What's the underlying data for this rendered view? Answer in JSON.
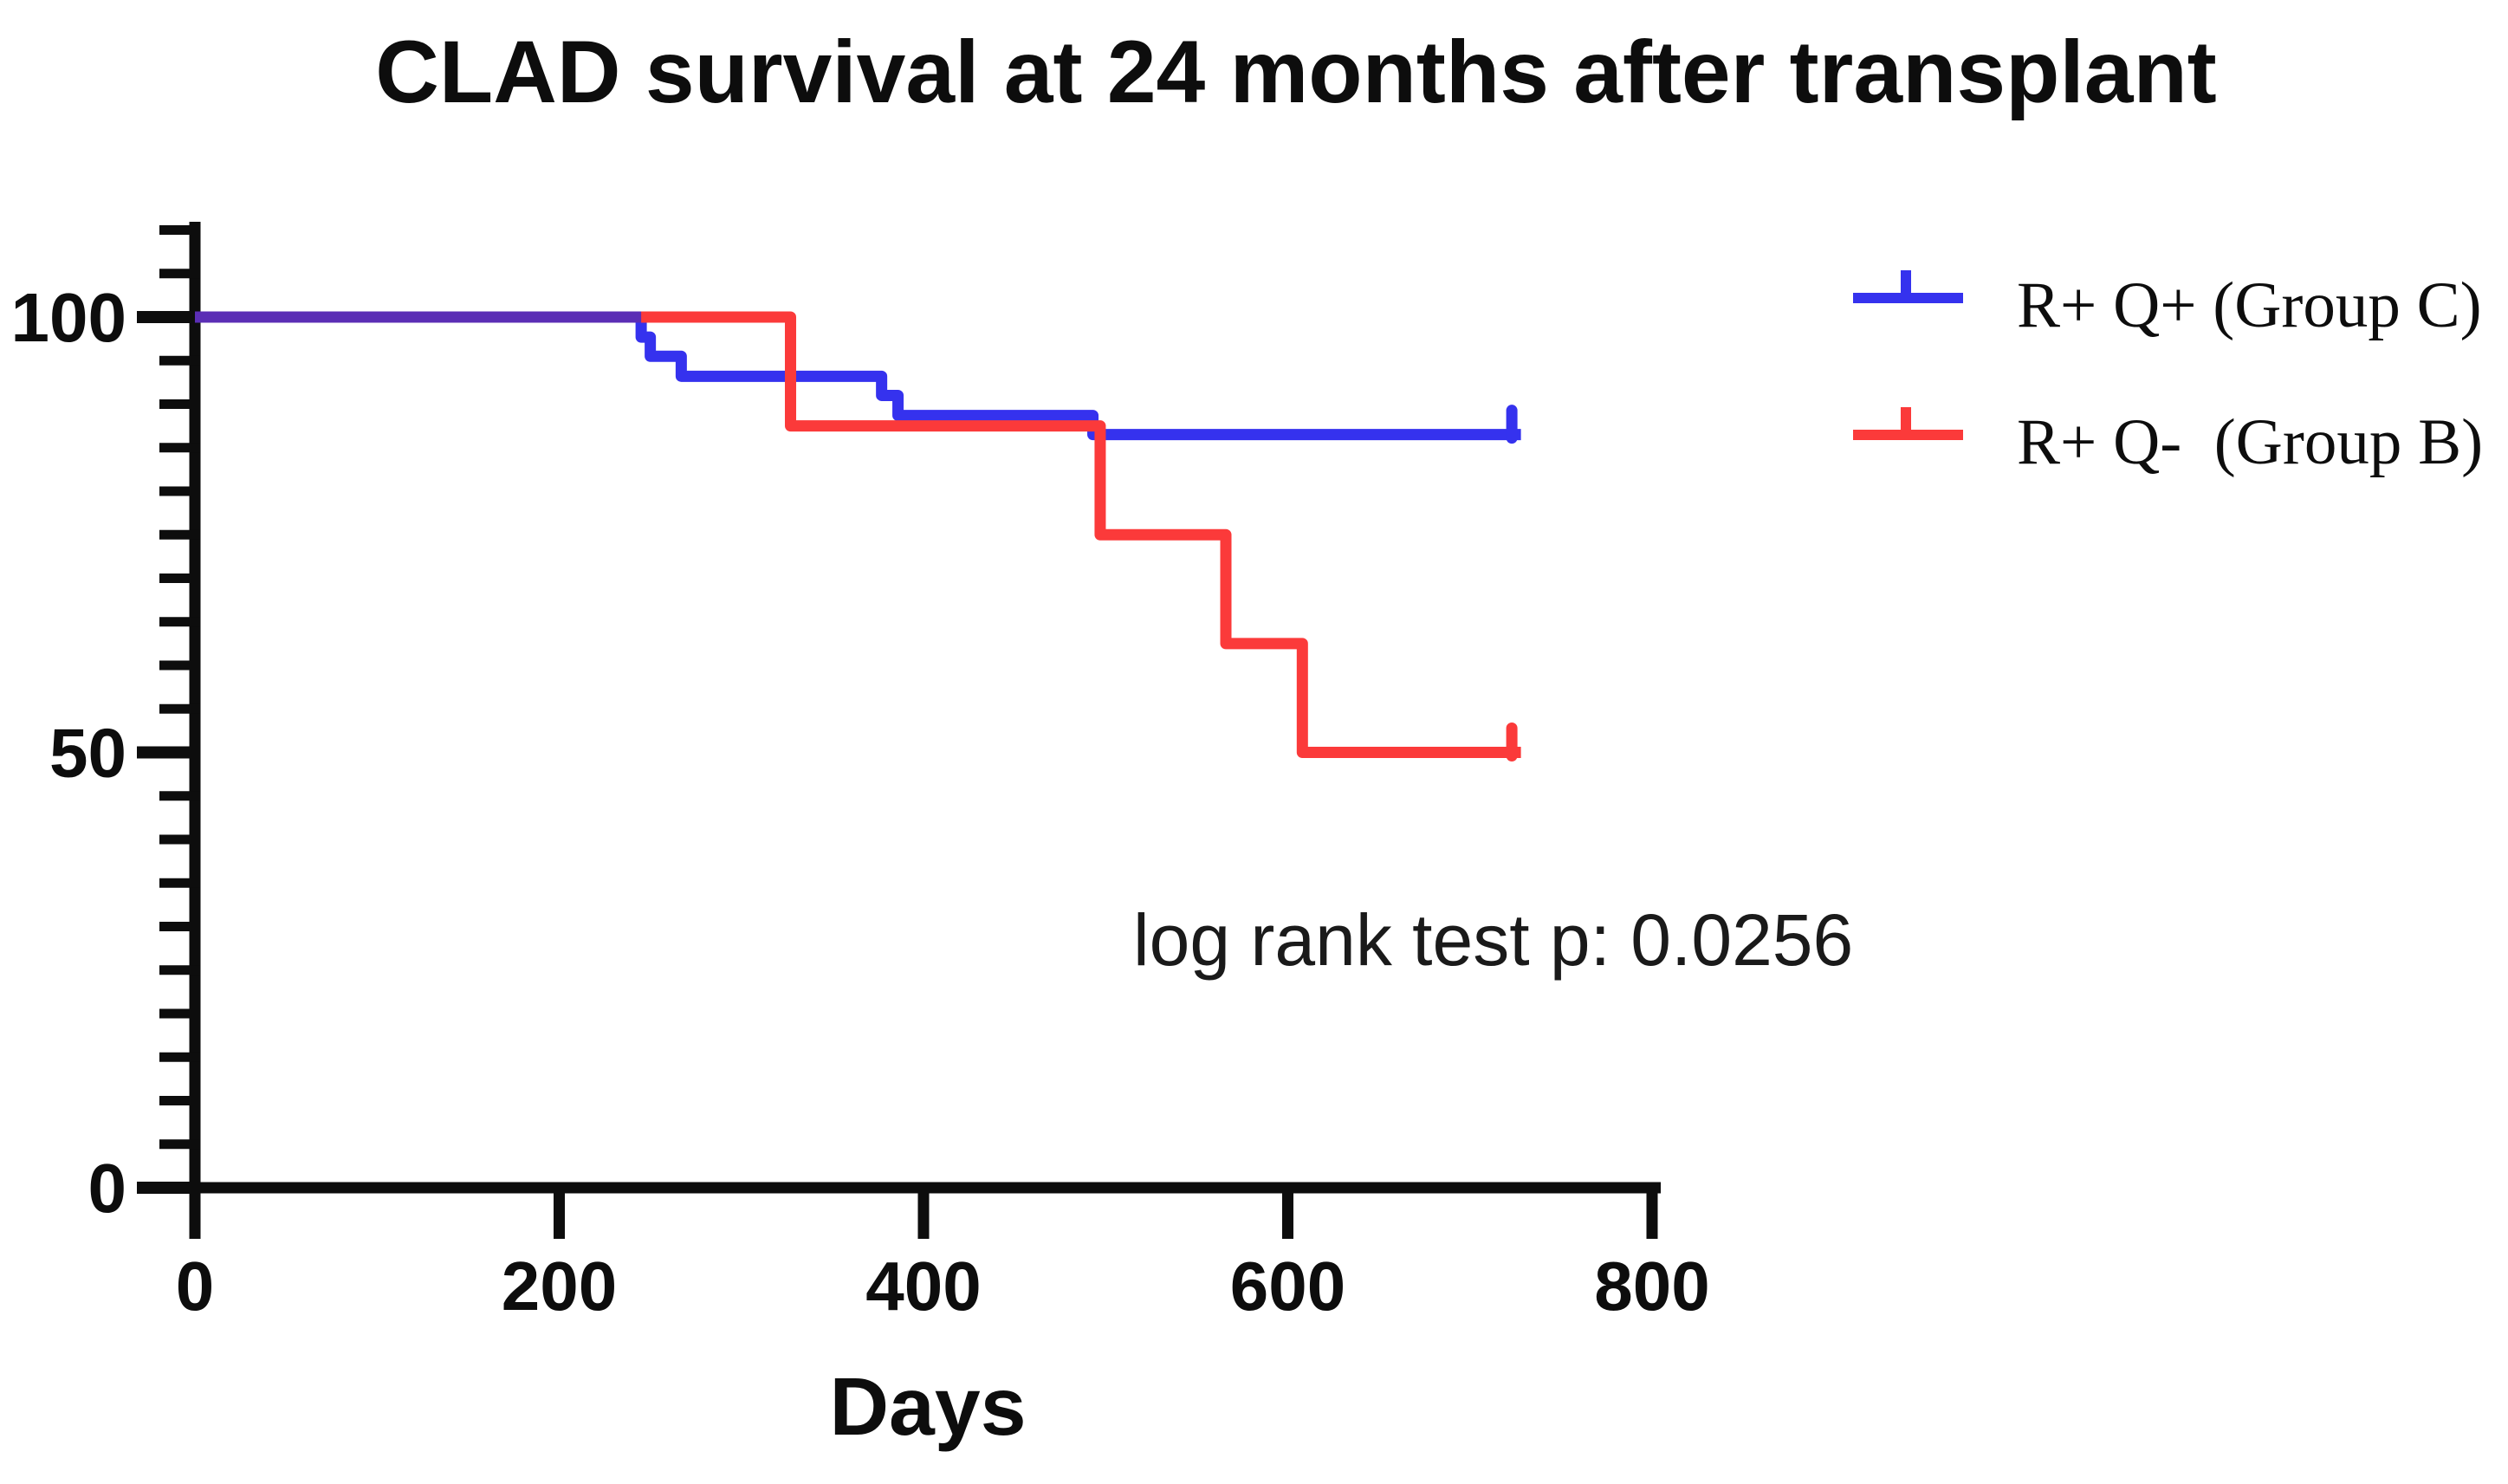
{
  "figure": {
    "title": "CLAD survival at 24 months after transplant",
    "annotation": "log rank test p: 0.0256",
    "xlabel": "Days"
  },
  "chart_data": {
    "type": "line",
    "subtype": "kaplan-meier-step",
    "title": "CLAD survival at 24 months after transplant",
    "xlabel": "Days",
    "ylabel": "",
    "xlim": [
      0,
      800
    ],
    "ylim": [
      0,
      110
    ],
    "x_ticks": [
      0,
      200,
      400,
      600,
      800
    ],
    "y_major_ticks": [
      0,
      50,
      100
    ],
    "y_minor_tick_step": 5,
    "y_minor_tick_max": 110,
    "grid": false,
    "legend_position": "top-right",
    "annotation": "log rank test p: 0.0256",
    "series": [
      {
        "name": "R+ Q+ (Group C)",
        "color": "#3532EE",
        "steps": [
          [
            0,
            100
          ],
          [
            245,
            97.7
          ],
          [
            250,
            95.5
          ],
          [
            267,
            93.2
          ],
          [
            377,
            91.0
          ],
          [
            386,
            88.7
          ],
          [
            493,
            86.5
          ]
        ],
        "end_day": 728,
        "censor_day": 723,
        "censored_at_end": true
      },
      {
        "name": "R+ Q-  (Group B)",
        "color": "#FB3A3A",
        "steps": [
          [
            0,
            100
          ],
          [
            327,
            87.5
          ],
          [
            497,
            75
          ],
          [
            566,
            62.5
          ],
          [
            608,
            50
          ]
        ],
        "end_day": 728,
        "censor_day": 723,
        "censored_at_end": true
      }
    ],
    "overlap_segment": {
      "from_day": 0,
      "to_day": 245,
      "value": 100,
      "color": "#5B2EB5"
    }
  },
  "colors": {
    "axis": "#0d0d0d",
    "background": "#ffffff",
    "blue_series": "#3532EE",
    "red_series": "#FB3A3A",
    "overlap_purple": "#5B2EB5"
  }
}
